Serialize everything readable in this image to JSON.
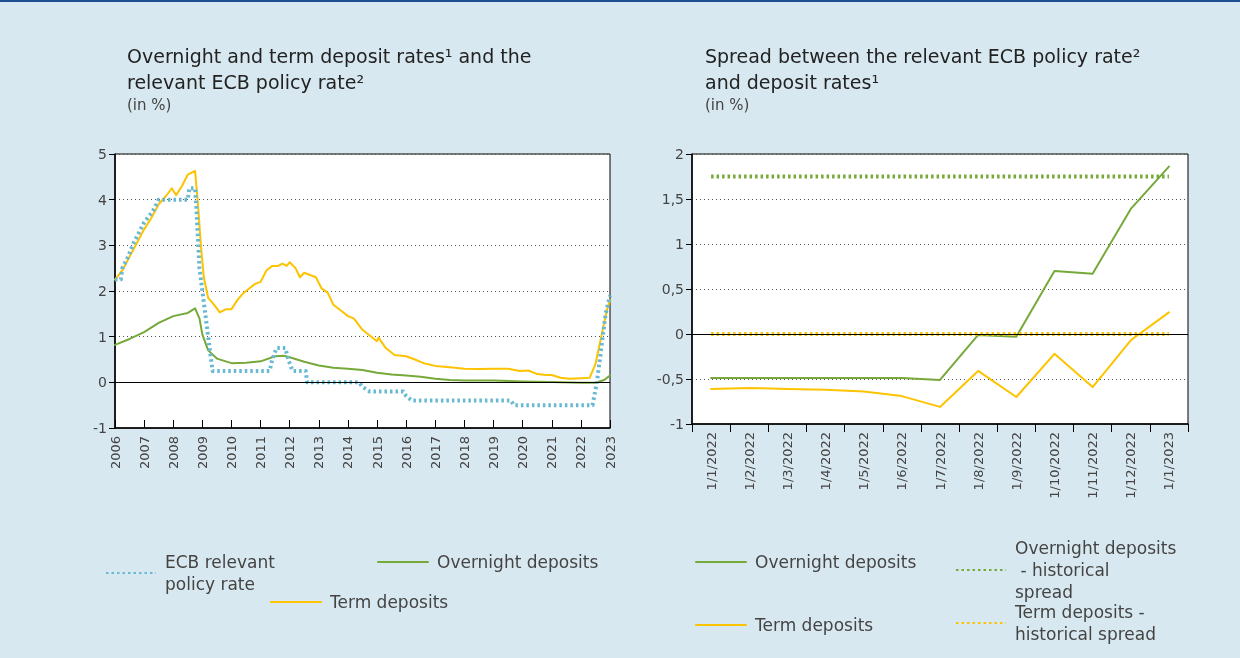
{
  "chart_data": [
    {
      "type": "line",
      "title": "Overnight and term deposit rates¹ and the relevant ECB policy rate²",
      "subtitle": "(in %)",
      "xlim": [
        2006,
        2023
      ],
      "xticks": [
        2006,
        2007,
        2008,
        2009,
        2010,
        2011,
        2012,
        2013,
        2014,
        2015,
        2016,
        2017,
        2018,
        2019,
        2020,
        2021,
        2022,
        2023
      ],
      "ylim": [
        -1,
        5
      ],
      "yticks": [
        -1,
        0,
        1,
        2,
        3,
        4,
        5
      ],
      "grid": "y",
      "legend": "bottom",
      "marker": "none",
      "ref_lines": [
        {
          "axis": "y",
          "value": 0,
          "color": "#000000",
          "line_style": "solid"
        }
      ],
      "series": [
        {
          "name": "ECB relevant policy rate",
          "color": "#67b8d2",
          "line_style": "dotted",
          "x": [
            2006.0,
            2006.2,
            2006.25,
            2006.45,
            2006.6,
            2006.8,
            2007.0,
            2007.3,
            2007.5,
            2008.5,
            2008.55,
            2008.75,
            2008.8,
            2008.9,
            2009.0,
            2009.1,
            2009.2,
            2009.35,
            2011.31,
            2011.4,
            2011.55,
            2011.85,
            2011.95,
            2012.1,
            2012.55,
            2012.6,
            2014.38,
            2014.5,
            2014.75,
            2015.9,
            2016.0,
            2016.2,
            2019.6,
            2019.7,
            2022.4,
            2022.55,
            2022.7,
            2022.85,
            2023.0
          ],
          "values": [
            2.25,
            2.25,
            2.5,
            2.75,
            3.0,
            3.25,
            3.5,
            3.75,
            4.0,
            4.0,
            4.25,
            4.25,
            3.75,
            2.5,
            2.0,
            1.5,
            1.0,
            0.25,
            0.25,
            0.5,
            0.75,
            0.75,
            0.5,
            0.25,
            0.25,
            0.0,
            0.0,
            -0.1,
            -0.2,
            -0.2,
            -0.3,
            -0.4,
            -0.4,
            -0.5,
            -0.5,
            0.0,
            0.75,
            1.5,
            1.9
          ]
        },
        {
          "name": "Overnight deposits",
          "color": "#76a93a",
          "line_style": "solid",
          "x": [
            2006.0,
            2006.5,
            2007.0,
            2007.5,
            2008.0,
            2008.5,
            2008.75,
            2008.9,
            2009.0,
            2009.2,
            2009.5,
            2010.0,
            2010.5,
            2011.0,
            2011.5,
            2011.8,
            2012.0,
            2012.5,
            2013.0,
            2013.5,
            2014.0,
            2014.5,
            2015.0,
            2015.5,
            2016.0,
            2016.5,
            2017.0,
            2017.5,
            2018.0,
            2019.0,
            2020.0,
            2021.0,
            2022.0,
            2022.5,
            2022.8,
            2023.0
          ],
          "values": [
            0.82,
            0.95,
            1.1,
            1.3,
            1.45,
            1.52,
            1.62,
            1.4,
            1.05,
            0.7,
            0.52,
            0.42,
            0.43,
            0.46,
            0.57,
            0.58,
            0.55,
            0.45,
            0.37,
            0.32,
            0.3,
            0.27,
            0.21,
            0.17,
            0.15,
            0.12,
            0.08,
            0.05,
            0.04,
            0.04,
            0.02,
            0.01,
            -0.01,
            -0.01,
            0.05,
            0.15
          ]
        },
        {
          "name": "Term deposits",
          "color": "#fdc300",
          "line_style": "solid",
          "x": [
            2006.0,
            2006.25,
            2006.5,
            2006.75,
            2007.0,
            2007.25,
            2007.5,
            2007.75,
            2007.95,
            2008.1,
            2008.3,
            2008.5,
            2008.75,
            2008.85,
            2008.95,
            2009.05,
            2009.2,
            2009.4,
            2009.6,
            2009.8,
            2010.0,
            2010.2,
            2010.4,
            2010.6,
            2010.8,
            2011.0,
            2011.2,
            2011.4,
            2011.6,
            2011.75,
            2011.9,
            2012.0,
            2012.2,
            2012.35,
            2012.5,
            2012.7,
            2012.9,
            2013.1,
            2013.3,
            2013.5,
            2013.8,
            2014.0,
            2014.2,
            2014.5,
            2014.8,
            2015.0,
            2015.05,
            2015.3,
            2015.6,
            2016.0,
            2016.3,
            2016.6,
            2017.0,
            2017.5,
            2018.0,
            2018.5,
            2019.0,
            2019.5,
            2019.9,
            2020.2,
            2020.5,
            2020.8,
            2021.0,
            2021.3,
            2021.6,
            2022.0,
            2022.3,
            2022.5,
            2022.7,
            2022.9,
            2023.0
          ],
          "values": [
            2.25,
            2.45,
            2.75,
            3.05,
            3.35,
            3.6,
            3.9,
            4.08,
            4.25,
            4.1,
            4.3,
            4.55,
            4.63,
            3.9,
            3.0,
            2.3,
            1.85,
            1.7,
            1.53,
            1.6,
            1.6,
            1.8,
            1.95,
            2.05,
            2.15,
            2.2,
            2.45,
            2.55,
            2.55,
            2.6,
            2.55,
            2.63,
            2.5,
            2.3,
            2.4,
            2.35,
            2.3,
            2.05,
            1.97,
            1.7,
            1.55,
            1.45,
            1.4,
            1.15,
            1.0,
            0.9,
            0.98,
            0.75,
            0.6,
            0.57,
            0.5,
            0.42,
            0.36,
            0.33,
            0.3,
            0.29,
            0.3,
            0.3,
            0.25,
            0.26,
            0.18,
            0.16,
            0.16,
            0.1,
            0.08,
            0.09,
            0.1,
            0.4,
            1.0,
            1.6,
            1.8
          ]
        }
      ]
    },
    {
      "type": "line",
      "title": "Spread between the relevant ECB policy rate² and deposit rates¹",
      "subtitle": "(in %)",
      "categories": [
        "1/1/2022",
        "1/2/2022",
        "1/3/2022",
        "1/4/2022",
        "1/5/2022",
        "1/6/2022",
        "1/7/2022",
        "1/8/2022",
        "1/9/2022",
        "1/10/2022",
        "1/11/2022",
        "1/12/2022",
        "1/1/2023"
      ],
      "ylim": [
        -1,
        2
      ],
      "yticks": [
        -1,
        {
          "value": -0.5,
          "label": "-0,5"
        },
        0,
        {
          "value": 0.5,
          "label": "0,5"
        },
        1,
        {
          "value": 1.5,
          "label": "1,5"
        },
        2
      ],
      "grid": "y",
      "legend": "bottom",
      "marker": "none",
      "ref_lines": [
        {
          "axis": "y",
          "value": 0,
          "color": "#000000",
          "line_style": "solid"
        }
      ],
      "series": [
        {
          "name": "Overnight deposits",
          "color": "#76a93a",
          "line_style": "solid",
          "values": [
            -0.49,
            -0.49,
            -0.49,
            -0.49,
            -0.49,
            -0.49,
            -0.51,
            -0.01,
            -0.03,
            0.7,
            0.67,
            1.39,
            1.86
          ]
        },
        {
          "name": "Overnight deposits - historical spread",
          "color": "#76a93a",
          "line_style": "dotted",
          "values": [
            1.75,
            1.75,
            1.75,
            1.75,
            1.75,
            1.75,
            1.75,
            1.75,
            1.75,
            1.75,
            1.75,
            1.75,
            1.75
          ]
        },
        {
          "name": "Term deposits",
          "color": "#fdc300",
          "line_style": "solid",
          "values": [
            -0.61,
            -0.6,
            -0.61,
            -0.62,
            -0.64,
            -0.69,
            -0.81,
            -0.41,
            -0.7,
            -0.22,
            -0.59,
            -0.07,
            0.24
          ]
        },
        {
          "name": "Term deposits - historical spread",
          "color": "#fdc300",
          "line_style": "dotted",
          "values": [
            0,
            0,
            0,
            0,
            0,
            0,
            0,
            0,
            0,
            0,
            0,
            0,
            0
          ]
        }
      ]
    }
  ]
}
